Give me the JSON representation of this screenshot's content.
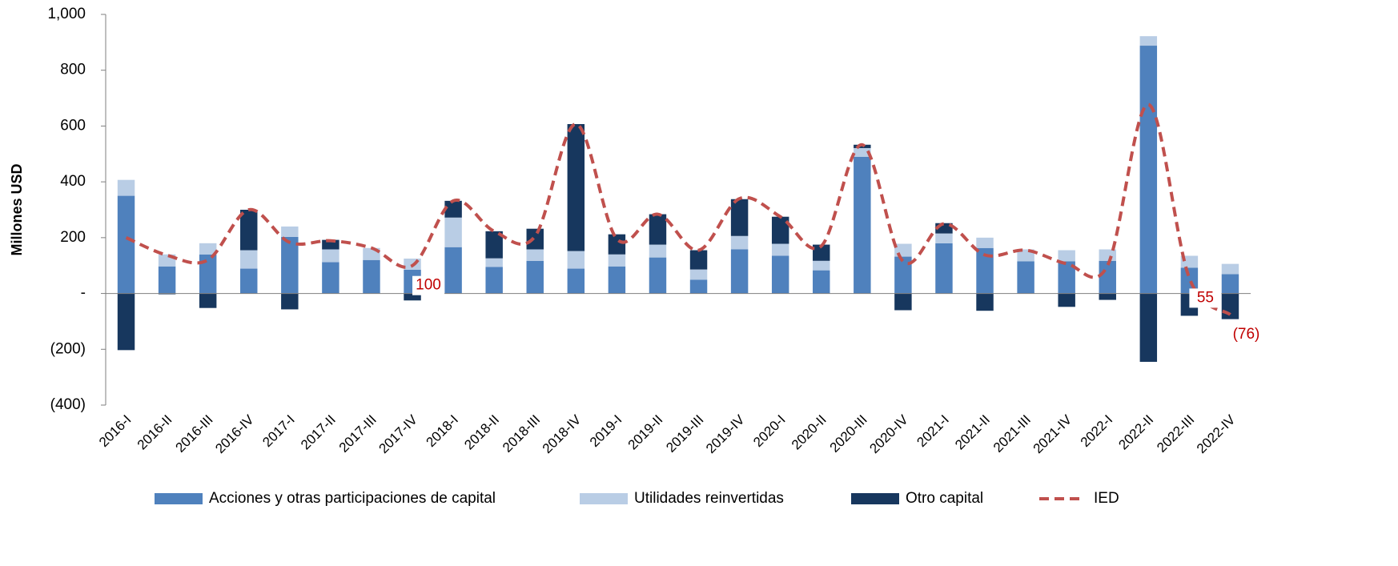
{
  "chart_data": {
    "type": "bar_line",
    "y_label": "Millones USD",
    "categories": [
      "2016-I",
      "2016-II",
      "2016-III",
      "2016-IV",
      "2017-I",
      "2017-II",
      "2017-III",
      "2017-IV",
      "2018-I",
      "2018-II",
      "2018-III",
      "2018-IV",
      "2019-I",
      "2019-II",
      "2019-III",
      "2019-IV",
      "2020-I",
      "2020-II",
      "2020-III",
      "2020-IV",
      "2021-I",
      "2021-II",
      "2021-III",
      "2021-IV",
      "2022-I",
      "2022-II",
      "2022-III",
      "2022-IV"
    ],
    "series": [
      {
        "name": "Acciones y otras participaciones de capital",
        "color": "#4f81bd",
        "kind": "bar",
        "values": [
          350,
          97,
          140,
          89,
          203,
          112,
          120,
          85,
          166,
          95,
          117,
          89,
          97,
          129,
          49,
          158,
          135,
          83,
          490,
          132,
          180,
          163,
          115,
          115,
          117,
          888,
          92,
          69
        ]
      },
      {
        "name": "Utilidades reinvertidas",
        "color": "#b9cde5",
        "kind": "bar",
        "values": [
          57,
          43,
          40,
          66,
          37,
          46,
          43,
          40,
          106,
          31,
          41,
          63,
          43,
          46,
          37,
          48,
          43,
          34,
          31,
          46,
          35,
          37,
          43,
          40,
          41,
          34,
          43,
          37
        ]
      },
      {
        "name": "Otro capital",
        "color": "#17375e",
        "kind": "bar",
        "values": [
          -203,
          -3,
          -52,
          145,
          -57,
          34,
          0,
          -25,
          60,
          97,
          74,
          455,
          72,
          109,
          69,
          132,
          97,
          58,
          12,
          -60,
          37,
          -62,
          0,
          -48,
          -23,
          -245,
          -80,
          -92
        ]
      },
      {
        "name": "IED",
        "color": "#c0504d",
        "kind": "line",
        "values": [
          200,
          137,
          120,
          300,
          183,
          189,
          163,
          100,
          332,
          223,
          205,
          607,
          195,
          284,
          155,
          340,
          275,
          170,
          533,
          115,
          250,
          138,
          155,
          107,
          100,
          677,
          55,
          -76
        ],
        "value_labels": [
          null,
          null,
          null,
          null,
          null,
          null,
          null,
          "100",
          null,
          null,
          null,
          null,
          null,
          null,
          null,
          null,
          null,
          null,
          null,
          null,
          null,
          null,
          null,
          null,
          null,
          null,
          "55",
          "(76)"
        ]
      }
    ],
    "ylim": [
      -400,
      1000
    ],
    "yticks": [
      {
        "value": -400,
        "label": "(400)"
      },
      {
        "value": -200,
        "label": "(200)"
      },
      {
        "value": 0,
        "label": "-"
      },
      200,
      400,
      600,
      800,
      {
        "value": 1000,
        "label": "1,000"
      }
    ],
    "legend": "bottom"
  }
}
